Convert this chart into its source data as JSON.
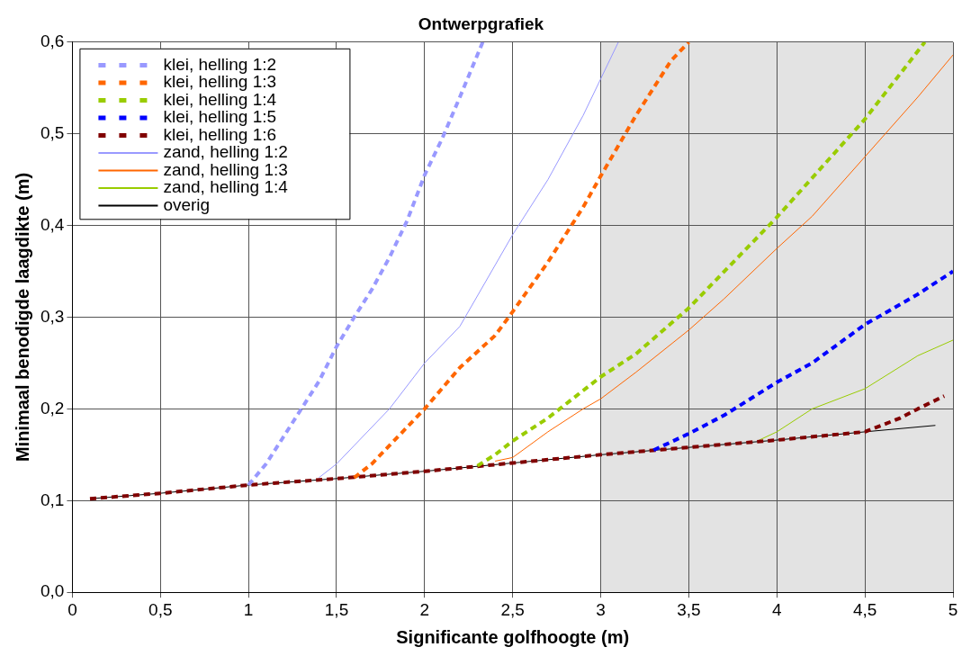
{
  "chart_data": {
    "type": "line",
    "title": "Ontwerpgrafiek",
    "xlabel": "Significante golfhoogte (m)",
    "ylabel": "Minimaal benodigde laagdikte (m)",
    "xlim": [
      0,
      5
    ],
    "xticks": [
      0,
      {
        "value": 0.5,
        "label": "0,5"
      },
      1,
      {
        "value": 1.5,
        "label": "1,5"
      },
      2,
      {
        "value": 2.5,
        "label": "2,5"
      },
      3,
      {
        "value": 3.5,
        "label": "3,5"
      },
      4,
      {
        "value": 4.5,
        "label": "4,5"
      },
      5
    ],
    "ylim": [
      0,
      0.6
    ],
    "yticks": [
      {
        "value": 0,
        "label": "0,0"
      },
      {
        "value": 0.1,
        "label": "0,1"
      },
      {
        "value": 0.2,
        "label": "0,2"
      },
      {
        "value": 0.3,
        "label": "0,3"
      },
      {
        "value": 0.4,
        "label": "0,4"
      },
      {
        "value": 0.5,
        "label": "0,5"
      },
      {
        "value": 0.6,
        "label": "0,6"
      }
    ],
    "grid": true,
    "legend": "top left",
    "marker": "none",
    "bands": [
      {
        "axis": "x",
        "from": 3,
        "to": 5,
        "color": "#e3e3e3"
      }
    ],
    "series": [
      {
        "name": "klei, helling 1:2",
        "color": "#9999ff",
        "line_style": "dashed",
        "x": [
          1,
          1.1,
          1.2,
          1.3,
          1.4,
          1.5,
          1.6,
          1.7,
          1.8,
          1.9,
          2,
          2.1,
          2.2,
          2.33
        ],
        "values": [
          0.117,
          0.14,
          0.17,
          0.2,
          0.23,
          0.268,
          0.3,
          0.33,
          0.365,
          0.405,
          0.455,
          0.495,
          0.54,
          0.6
        ]
      },
      {
        "name": "klei, helling 1:3",
        "color": "#ff6600",
        "line_style": "dashed",
        "x": [
          1.6,
          1.7,
          1.8,
          2,
          2.2,
          2.4,
          2.5,
          2.7,
          2.9,
          3,
          3.2,
          3.4,
          3.5
        ],
        "values": [
          0.125,
          0.14,
          0.16,
          0.2,
          0.245,
          0.28,
          0.306,
          0.36,
          0.42,
          0.454,
          0.52,
          0.58,
          0.6
        ]
      },
      {
        "name": "klei, helling 1:4",
        "color": "#99cc00",
        "line_style": "dashed",
        "x": [
          2.3,
          2.4,
          2.5,
          2.7,
          2.9,
          3,
          3.2,
          3.5,
          4,
          4.5,
          4.84
        ],
        "values": [
          0.138,
          0.15,
          0.165,
          0.19,
          0.22,
          0.235,
          0.26,
          0.31,
          0.409,
          0.516,
          0.6
        ]
      },
      {
        "name": "klei, helling 1:5",
        "color": "#0000ff",
        "line_style": "dashed",
        "x": [
          3.3,
          3.5,
          3.7,
          4,
          4.2,
          4.5,
          4.8,
          5
        ],
        "values": [
          0.155,
          0.173,
          0.193,
          0.229,
          0.25,
          0.292,
          0.325,
          0.35
        ]
      },
      {
        "name": "klei, helling 1:6",
        "color": "#800000",
        "line_style": "dashed",
        "x": [
          0.1,
          0.5,
          1,
          1.5,
          2,
          2.5,
          3,
          3.5,
          4,
          4.5,
          4.7,
          4.8,
          4.95
        ],
        "values": [
          0.102,
          0.108,
          0.117,
          0.124,
          0.132,
          0.141,
          0.15,
          0.158,
          0.166,
          0.175,
          0.19,
          0.2,
          0.214
        ]
      },
      {
        "name": "zand, helling 1:2",
        "color": "#9999ff",
        "line_style": "solid",
        "x": [
          1.4,
          1.5,
          1.6,
          1.8,
          2,
          2.2,
          2.5,
          2.7,
          2.9,
          3,
          3.1
        ],
        "values": [
          0.125,
          0.14,
          0.16,
          0.2,
          0.25,
          0.29,
          0.39,
          0.45,
          0.52,
          0.56,
          0.6
        ]
      },
      {
        "name": "zand, helling 1:3",
        "color": "#ff6600",
        "line_style": "solid",
        "x": [
          2.4,
          2.5,
          2.7,
          2.9,
          3,
          3.2,
          3.5,
          3.7,
          4,
          4.2,
          4.5,
          4.8,
          5
        ],
        "values": [
          0.143,
          0.147,
          0.175,
          0.2,
          0.211,
          0.24,
          0.286,
          0.32,
          0.375,
          0.41,
          0.475,
          0.54,
          0.586
        ]
      },
      {
        "name": "zand, helling 1:4",
        "color": "#99cc00",
        "line_style": "solid",
        "x": [
          3.9,
          4,
          4.2,
          4.5,
          4.8,
          5
        ],
        "values": [
          0.166,
          0.175,
          0.2,
          0.222,
          0.258,
          0.275
        ]
      },
      {
        "name": "overig",
        "color": "#000000",
        "line_style": "solid",
        "x": [
          0.1,
          0.5,
          1,
          1.5,
          2,
          2.5,
          3,
          3.5,
          4,
          4.5,
          4.9
        ],
        "values": [
          0.102,
          0.108,
          0.117,
          0.124,
          0.132,
          0.141,
          0.15,
          0.158,
          0.166,
          0.175,
          0.182
        ]
      }
    ]
  }
}
